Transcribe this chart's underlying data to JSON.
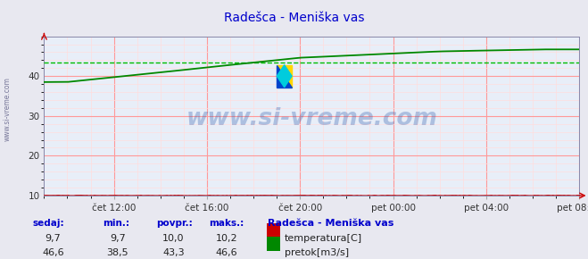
{
  "title": "Radešca - Meniška vas",
  "title_color": "#0000cc",
  "bg_color": "#e8e8f0",
  "plot_bg_color": "#e8eef8",
  "grid_color_major": "#ff9999",
  "grid_color_minor": "#ffdddd",
  "ylim": [
    10,
    50
  ],
  "yticks": [
    10,
    20,
    30,
    40
  ],
  "xtick_labels": [
    "čet 12:00",
    "čet 16:00",
    "čet 20:00",
    "pet 00:00",
    "pet 04:00",
    "pet 08:00"
  ],
  "temp_color": "#cc0000",
  "flow_color": "#008800",
  "avg_flow_color": "#00bb00",
  "avg_temp_color": "#ff6666",
  "temp_value": "9,7",
  "temp_min": "9,7",
  "temp_avg": "10,0",
  "temp_max": "10,2",
  "flow_value": "46,6",
  "flow_min": "38,5",
  "flow_avg": "43,3",
  "flow_max": "46,6",
  "watermark": "www.si-vreme.com",
  "watermark_color": "#2255aa",
  "sidebar_text": "www.si-vreme.com",
  "legend_title": "Radešca - Meniška vas",
  "headers": [
    "sedaj:",
    "min.:",
    "povpr.:",
    "maks.:"
  ]
}
